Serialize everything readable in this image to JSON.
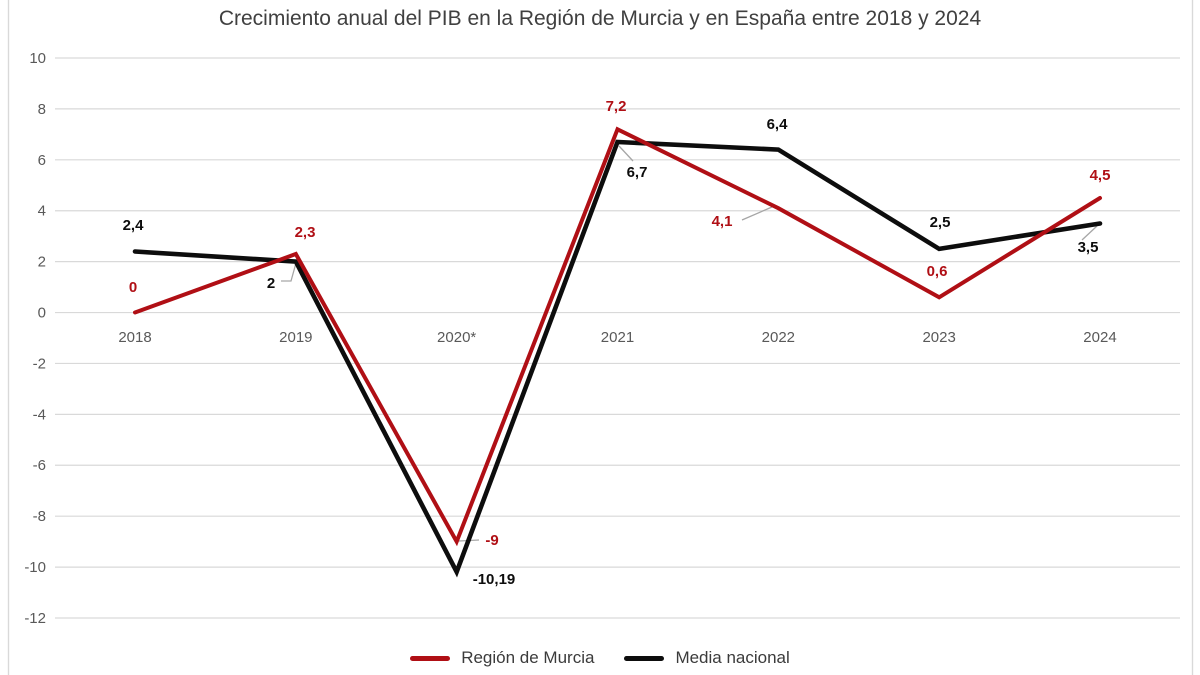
{
  "title": "Crecimiento anual del PIB en la Región de Murcia y en España entre 2018 y 2024",
  "chart_data": {
    "type": "line",
    "categories": [
      "2018",
      "2019",
      "2020*",
      "2021",
      "2022",
      "2023",
      "2024"
    ],
    "series": [
      {
        "name": "Región de Murcia",
        "color": "#b00f15",
        "values": [
          0,
          2.3,
          -9,
          7.2,
          4.1,
          0.6,
          4.5
        ],
        "labels": [
          "0",
          "2,3",
          "-9",
          "7,2",
          "4,1",
          "0,6",
          "4,5"
        ]
      },
      {
        "name": "Media nacional",
        "color": "#0d0d0d",
        "values": [
          2.4,
          2,
          -10.19,
          6.7,
          6.4,
          2.5,
          3.5
        ],
        "labels": [
          "2,4",
          "2",
          "-10,19",
          "6,7",
          "6,4",
          "2,5",
          "3,5"
        ]
      }
    ],
    "ylim": [
      -12,
      10
    ],
    "ytick_step": 2,
    "yticks": [
      "10",
      "8",
      "6",
      "4",
      "2",
      "0",
      "-2",
      "-4",
      "-6",
      "-8",
      "-10",
      "-12"
    ],
    "grid": "horizontal-only",
    "legend_position": "bottom"
  },
  "legend": {
    "items": [
      {
        "label": "Región de Murcia",
        "color": "#b00f15"
      },
      {
        "label": "Media nacional",
        "color": "#0d0d0d"
      }
    ]
  },
  "colors": {
    "background": "#ffffff",
    "gridline": "#d9d9d9",
    "plot_border": "#d9d9d9",
    "axis_text": "#595959",
    "title_text": "#404040",
    "leader_line": "#a6a6a6",
    "murcia_line": "#b00f15",
    "nacional_line": "#0d0d0d"
  }
}
